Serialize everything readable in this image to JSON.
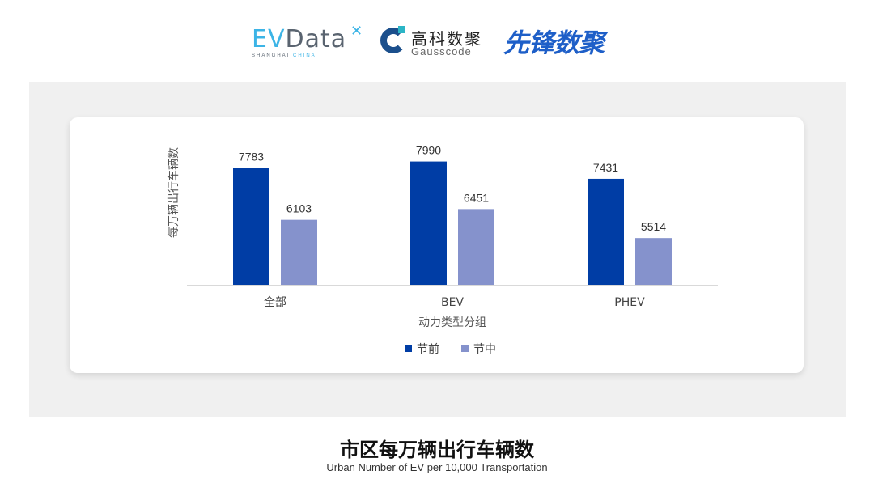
{
  "logos": {
    "evdata": {
      "text": "EVData",
      "ev": "EV",
      "rest": "Data",
      "sub1": "SHANGHAI",
      "sub2": "CHINA"
    },
    "gausscode": {
      "cn": "高科数聚",
      "en": "Gausscode"
    },
    "xianfeng": {
      "text": "先锋数聚"
    }
  },
  "title": "市区每万辆出行车辆数",
  "subtitle": "Urban Number of EV per 10,000 Transportation",
  "chart_data": {
    "type": "bar",
    "categories": [
      "全部",
      "BEV",
      "PHEV"
    ],
    "series": [
      {
        "name": "节前",
        "values": [
          7783,
          7990,
          7431
        ],
        "color": "#003DA5"
      },
      {
        "name": "节中",
        "values": [
          6103,
          6451,
          5514
        ],
        "color": "#8592CC"
      }
    ],
    "xlabel": "动力类型分组",
    "ylabel": "每万辆出行车辆数",
    "ylim": [
      4000,
      9000
    ],
    "grid": false,
    "legend": "bottom",
    "data_labels": true
  }
}
